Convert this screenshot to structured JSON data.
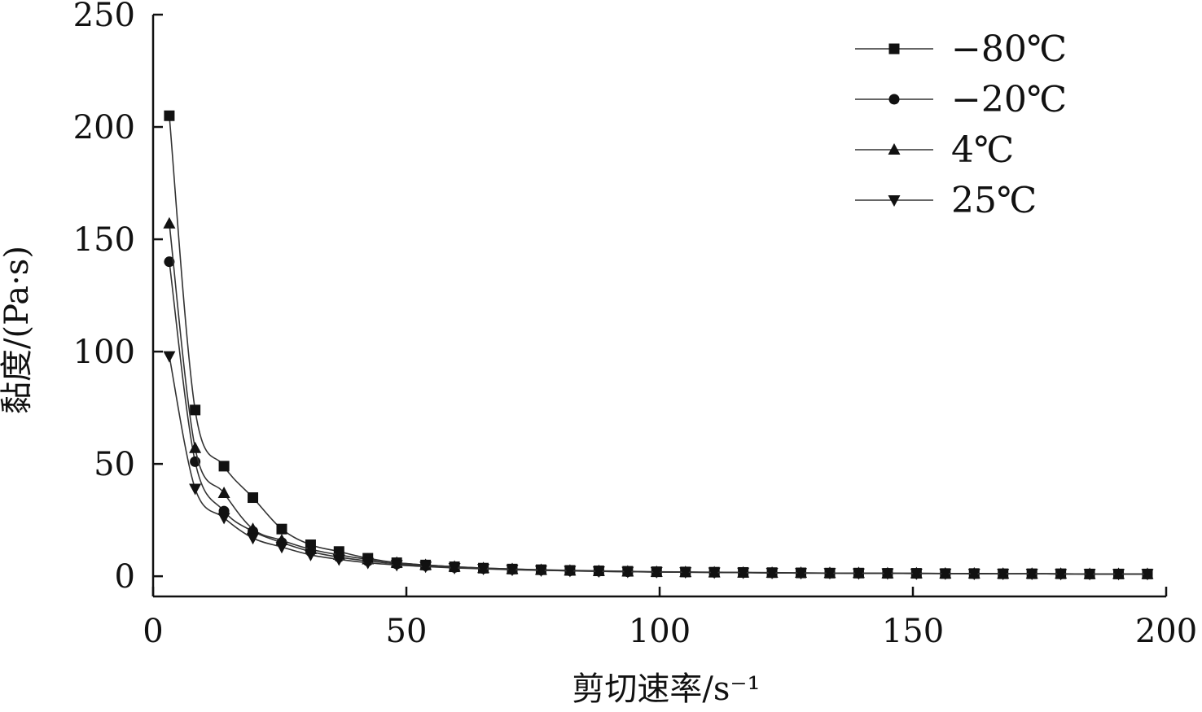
{
  "chart_data": {
    "type": "line",
    "title": "",
    "xlabel": "剪切速率/s⁻¹",
    "ylabel": "黏度/(Pa·s)",
    "xlim": [
      0,
      200
    ],
    "ylim": [
      -9,
      250
    ],
    "x_ticks": [
      0,
      50,
      100,
      150,
      200
    ],
    "y_ticks": [
      0,
      50,
      100,
      150,
      200,
      250
    ],
    "legend_position": "top-right",
    "series": [
      {
        "name": "−80℃",
        "marker": "square",
        "points": [
          [
            3.2,
            205
          ],
          [
            8.3,
            74
          ],
          [
            14,
            49
          ],
          [
            19.7,
            35
          ],
          [
            25.4,
            21
          ],
          [
            31.1,
            14
          ],
          [
            36.7,
            11
          ],
          [
            42.4,
            8
          ],
          [
            48.1,
            6
          ],
          [
            53.8,
            5
          ],
          [
            59.5,
            4.2
          ],
          [
            65.2,
            3.6
          ],
          [
            70.9,
            3.2
          ],
          [
            76.6,
            2.9
          ],
          [
            82.3,
            2.6
          ],
          [
            88,
            2.4
          ],
          [
            93.7,
            2.2
          ],
          [
            99.4,
            2
          ],
          [
            105.1,
            1.9
          ],
          [
            110.8,
            1.8
          ],
          [
            116.5,
            1.7
          ],
          [
            122.2,
            1.6
          ],
          [
            127.9,
            1.5
          ],
          [
            133.6,
            1.4
          ],
          [
            139.3,
            1.4
          ],
          [
            145,
            1.3
          ],
          [
            150.7,
            1.3
          ],
          [
            156.4,
            1.2
          ],
          [
            162.1,
            1.2
          ],
          [
            167.8,
            1.1
          ],
          [
            173.5,
            1.1
          ],
          [
            179.2,
            1.1
          ],
          [
            184.9,
            1
          ],
          [
            190.6,
            1
          ],
          [
            196.3,
            1
          ]
        ]
      },
      {
        "name": "−20℃",
        "marker": "circle",
        "points": [
          [
            3.2,
            140
          ],
          [
            8.3,
            51
          ],
          [
            14,
            29
          ],
          [
            19.7,
            20
          ],
          [
            25.4,
            15
          ],
          [
            31.1,
            11
          ],
          [
            36.7,
            8.5
          ],
          [
            42.4,
            6.8
          ],
          [
            48.1,
            5.5
          ],
          [
            53.8,
            4.6
          ],
          [
            59.5,
            3.9
          ],
          [
            65.2,
            3.4
          ],
          [
            70.9,
            3
          ],
          [
            76.6,
            2.7
          ],
          [
            82.3,
            2.4
          ],
          [
            88,
            2.2
          ],
          [
            93.7,
            2
          ],
          [
            99.4,
            1.9
          ],
          [
            105.1,
            1.8
          ],
          [
            110.8,
            1.7
          ],
          [
            116.5,
            1.6
          ],
          [
            122.2,
            1.5
          ],
          [
            127.9,
            1.4
          ],
          [
            133.6,
            1.4
          ],
          [
            139.3,
            1.3
          ],
          [
            145,
            1.3
          ],
          [
            150.7,
            1.2
          ],
          [
            156.4,
            1.2
          ],
          [
            162.1,
            1.1
          ],
          [
            167.8,
            1.1
          ],
          [
            173.5,
            1.1
          ],
          [
            179.2,
            1
          ],
          [
            184.9,
            1
          ],
          [
            190.6,
            1
          ],
          [
            196.3,
            1
          ]
        ]
      },
      {
        "name": "4℃",
        "marker": "triangle-up",
        "points": [
          [
            3.2,
            157
          ],
          [
            8.3,
            57
          ],
          [
            14,
            37
          ],
          [
            19.7,
            21
          ],
          [
            25.4,
            16
          ],
          [
            31.1,
            12
          ],
          [
            36.7,
            9.5
          ],
          [
            42.4,
            7.5
          ],
          [
            48.1,
            6
          ],
          [
            53.8,
            5
          ],
          [
            59.5,
            4.2
          ],
          [
            65.2,
            3.6
          ],
          [
            70.9,
            3.2
          ],
          [
            76.6,
            2.8
          ],
          [
            82.3,
            2.5
          ],
          [
            88,
            2.3
          ],
          [
            93.7,
            2.1
          ],
          [
            99.4,
            1.9
          ],
          [
            105.1,
            1.8
          ],
          [
            110.8,
            1.7
          ],
          [
            116.5,
            1.6
          ],
          [
            122.2,
            1.5
          ],
          [
            127.9,
            1.5
          ],
          [
            133.6,
            1.4
          ],
          [
            139.3,
            1.4
          ],
          [
            145,
            1.3
          ],
          [
            150.7,
            1.3
          ],
          [
            156.4,
            1.2
          ],
          [
            162.1,
            1.2
          ],
          [
            167.8,
            1.1
          ],
          [
            173.5,
            1.1
          ],
          [
            179.2,
            1.1
          ],
          [
            184.9,
            1
          ],
          [
            190.6,
            1
          ],
          [
            196.3,
            1
          ]
        ]
      },
      {
        "name": "25℃",
        "marker": "triangle-down",
        "points": [
          [
            3.2,
            98
          ],
          [
            8.3,
            39
          ],
          [
            14,
            26
          ],
          [
            19.7,
            17
          ],
          [
            25.4,
            13
          ],
          [
            31.1,
            9.5
          ],
          [
            36.7,
            7.5
          ],
          [
            42.4,
            6
          ],
          [
            48.1,
            5
          ],
          [
            53.8,
            4.3
          ],
          [
            59.5,
            3.7
          ],
          [
            65.2,
            3.3
          ],
          [
            70.9,
            2.9
          ],
          [
            76.6,
            2.6
          ],
          [
            82.3,
            2.4
          ],
          [
            88,
            2.2
          ],
          [
            93.7,
            2
          ],
          [
            99.4,
            1.9
          ],
          [
            105.1,
            1.8
          ],
          [
            110.8,
            1.7
          ],
          [
            116.5,
            1.6
          ],
          [
            122.2,
            1.5
          ],
          [
            127.9,
            1.4
          ],
          [
            133.6,
            1.4
          ],
          [
            139.3,
            1.3
          ],
          [
            145,
            1.3
          ],
          [
            150.7,
            1.2
          ],
          [
            156.4,
            1.2
          ],
          [
            162.1,
            1.1
          ],
          [
            167.8,
            1.1
          ],
          [
            173.5,
            1.1
          ],
          [
            179.2,
            1
          ],
          [
            184.9,
            1
          ],
          [
            190.6,
            1
          ],
          [
            196.3,
            1
          ]
        ]
      }
    ]
  }
}
